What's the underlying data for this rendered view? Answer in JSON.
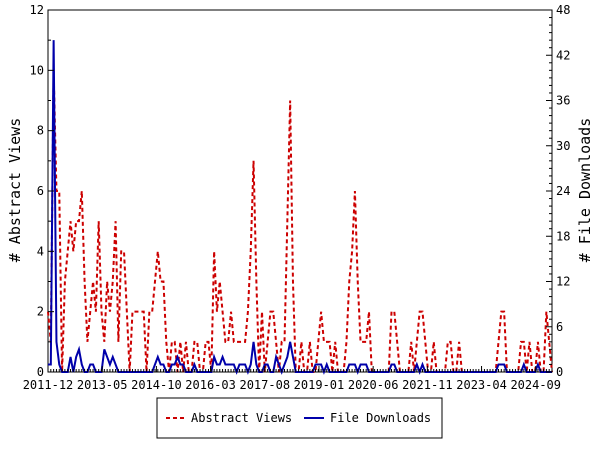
{
  "chart_data": {
    "type": "line",
    "left_axis_label": "# Abstract Views",
    "right_axis_label": "# File Downloads",
    "x_tick_labels": [
      "2011-12",
      "2013-05",
      "2014-10",
      "2016-03",
      "2017-08",
      "2019-01",
      "2020-06",
      "2021-11",
      "2023-04",
      "2024-09"
    ],
    "y_left_range": [
      0,
      12
    ],
    "y_left_ticks": [
      0,
      2,
      4,
      6,
      8,
      10,
      12
    ],
    "y_right_range": [
      0,
      48
    ],
    "y_right_ticks": [
      0,
      6,
      12,
      18,
      24,
      30,
      36,
      42,
      48
    ],
    "legend_position": "bottom",
    "grid": false,
    "series": [
      {
        "name": "Abstract Views",
        "axis": "left",
        "color": "#cc0000",
        "dash": "4,3",
        "values": [
          2,
          1,
          10,
          6,
          6,
          0,
          3,
          4,
          5,
          4,
          5,
          5,
          6,
          3,
          1,
          2,
          3,
          2,
          5,
          2,
          1,
          3,
          2,
          3,
          5,
          1,
          4,
          4,
          2,
          0,
          2,
          2,
          2,
          2,
          2,
          0,
          2,
          2,
          3,
          4,
          3,
          3,
          1,
          0,
          1,
          1,
          0,
          1,
          0,
          1,
          0,
          0,
          1,
          1,
          0,
          0,
          1,
          1,
          0,
          4,
          2,
          3,
          2,
          1,
          1,
          2,
          1,
          1,
          1,
          1,
          1,
          2,
          4,
          7,
          3,
          0,
          2,
          0,
          1,
          2,
          2,
          1,
          0,
          1,
          1,
          5,
          9,
          3,
          0,
          0,
          1,
          0,
          0,
          1,
          0,
          0,
          1,
          2,
          1,
          1,
          1,
          0,
          1,
          0,
          0,
          0,
          1,
          3,
          4,
          6,
          3,
          1,
          1,
          1,
          2,
          0,
          0,
          0,
          0,
          0,
          0,
          0,
          2,
          2,
          1,
          0,
          0,
          0,
          0,
          1,
          0,
          1,
          2,
          2,
          1,
          0,
          0,
          1,
          0,
          0,
          0,
          0,
          1,
          1,
          0,
          0,
          1,
          0,
          0,
          0,
          0,
          0,
          0,
          0,
          0,
          0,
          0,
          0,
          0,
          0,
          1,
          2,
          2,
          0,
          0,
          0,
          0,
          0,
          1,
          1,
          0,
          1,
          0,
          0,
          1,
          0,
          0,
          2,
          1,
          0
        ]
      },
      {
        "name": "File Downloads",
        "axis": "right",
        "color": "#0000aa",
        "dash": "",
        "values": [
          1,
          1,
          44,
          4,
          1,
          0,
          0,
          0,
          2,
          0,
          2,
          3,
          1,
          0,
          0,
          1,
          1,
          0,
          0,
          0,
          3,
          2,
          1,
          2,
          1,
          0,
          0,
          0,
          0,
          0,
          0,
          0,
          0,
          0,
          0,
          0,
          0,
          0,
          1,
          2,
          1,
          1,
          0,
          0,
          1,
          1,
          2,
          1,
          1,
          0,
          0,
          0,
          1,
          0,
          0,
          0,
          0,
          0,
          0,
          2,
          1,
          1,
          2,
          1,
          1,
          1,
          1,
          0,
          1,
          1,
          1,
          0,
          1,
          4,
          1,
          0,
          0,
          1,
          1,
          0,
          0,
          2,
          1,
          0,
          1,
          2,
          4,
          2,
          0,
          0,
          0,
          0,
          0,
          0,
          0,
          1,
          1,
          1,
          0,
          1,
          0,
          0,
          0,
          0,
          0,
          0,
          0,
          1,
          1,
          1,
          0,
          1,
          1,
          1,
          0,
          0,
          0,
          0,
          0,
          0,
          0,
          0,
          1,
          1,
          0,
          0,
          0,
          0,
          0,
          0,
          0,
          1,
          0,
          1,
          0,
          0,
          0,
          0,
          0,
          0,
          0,
          0,
          0,
          0,
          0,
          0,
          0,
          0,
          0,
          0,
          0,
          0,
          0,
          0,
          0,
          0,
          0,
          0,
          0,
          0,
          1,
          1,
          1,
          0,
          0,
          0,
          0,
          0,
          0,
          1,
          0,
          0,
          0,
          0,
          1,
          0,
          0,
          0,
          0,
          0
        ]
      }
    ]
  }
}
